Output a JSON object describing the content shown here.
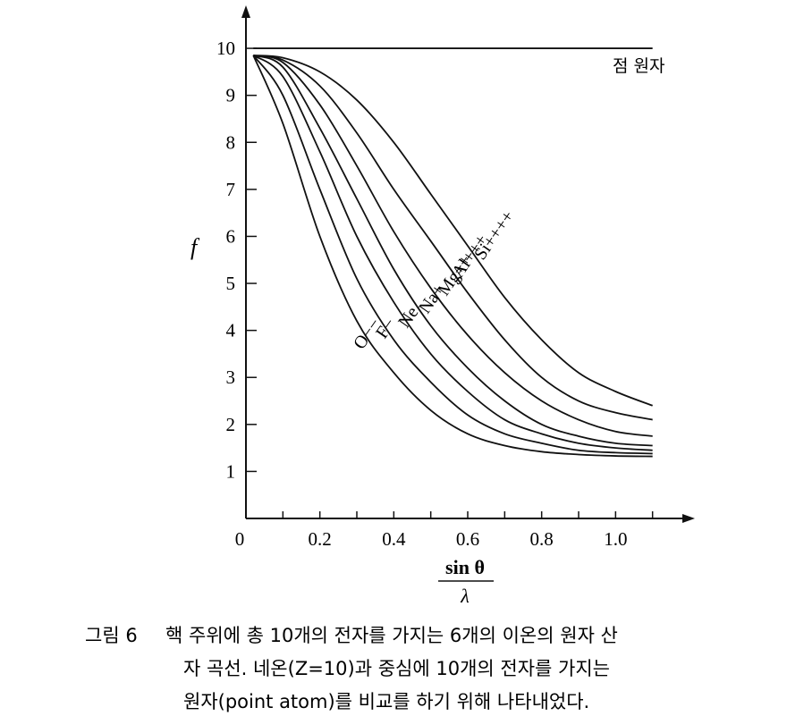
{
  "chart_data": {
    "type": "line",
    "ylabel": "f",
    "xlabel_numerator": "sin θ",
    "xlabel_denominator": "λ",
    "xlim": [
      0,
      1.2
    ],
    "ylim": [
      0,
      10.8
    ],
    "xticks": [
      0,
      0.2,
      0.4,
      0.6,
      0.8,
      {
        "value": 1,
        "label": "1.0"
      }
    ],
    "x_minor_ticks": [
      0.1,
      0.3,
      0.5,
      0.7,
      0.9,
      1.1
    ],
    "yticks": [
      1,
      2,
      3,
      4,
      5,
      6,
      7,
      8,
      9,
      10
    ],
    "x": [
      0.02,
      0.1,
      0.2,
      0.3,
      0.4,
      0.5,
      0.6,
      0.7,
      0.8,
      0.9,
      1.0,
      1.1
    ],
    "series": [
      {
        "name": "점 원자",
        "color": "#111",
        "values": [
          10,
          10,
          10,
          10,
          10,
          10,
          10,
          10,
          10,
          10,
          10,
          10
        ]
      },
      {
        "name": "Si++++",
        "color": "#111",
        "values": [
          9.85,
          9.8,
          9.5,
          8.9,
          8.0,
          6.9,
          5.8,
          4.7,
          3.8,
          3.1,
          2.7,
          2.4
        ]
      },
      {
        "name": "Al+++",
        "color": "#111",
        "values": [
          9.85,
          9.75,
          9.2,
          8.2,
          7.0,
          5.9,
          4.8,
          3.8,
          3.0,
          2.5,
          2.25,
          2.1
        ]
      },
      {
        "name": "Mg++",
        "color": "#111",
        "values": [
          9.85,
          9.7,
          8.8,
          7.5,
          6.1,
          4.9,
          3.9,
          3.1,
          2.5,
          2.1,
          1.85,
          1.75
        ]
      },
      {
        "name": "Na+",
        "color": "#111",
        "values": [
          9.85,
          9.6,
          8.3,
          6.8,
          5.3,
          4.1,
          3.2,
          2.5,
          2.0,
          1.75,
          1.6,
          1.55
        ]
      },
      {
        "name": "Ne",
        "color": "#111",
        "values": [
          9.85,
          9.4,
          7.8,
          6.0,
          4.6,
          3.5,
          2.7,
          2.1,
          1.8,
          1.6,
          1.5,
          1.45
        ]
      },
      {
        "name": "F−",
        "color": "#111",
        "values": [
          9.85,
          9.0,
          7.0,
          5.1,
          3.8,
          2.9,
          2.2,
          1.8,
          1.6,
          1.45,
          1.4,
          1.38
        ]
      },
      {
        "name": "O−−",
        "color": "#111",
        "values": [
          9.85,
          8.4,
          6.0,
          4.2,
          3.1,
          2.3,
          1.8,
          1.55,
          1.42,
          1.36,
          1.33,
          1.32
        ]
      }
    ],
    "caption_label": "그림 6",
    "caption_lines": [
      "핵 주위에 총 10개의 전자를 가지는 6개의 이온의 원자 산",
      "자 곡선.  네온(Z=10)과 중심에 10개의 전자를 가지는",
      "원자(point atom)를 비교를 하기 위해 나타내었다."
    ]
  }
}
